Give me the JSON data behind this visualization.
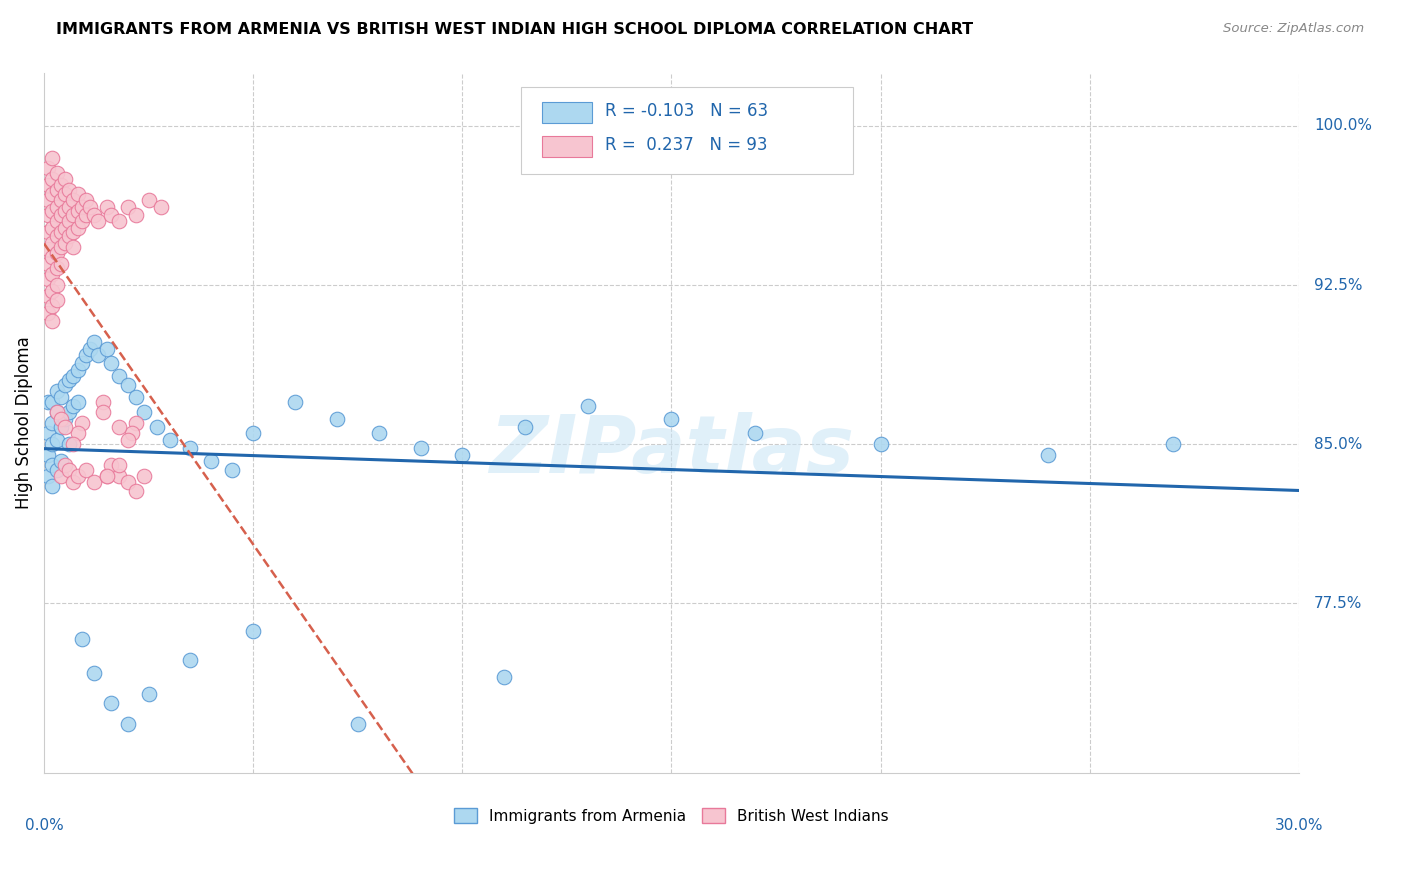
{
  "title": "IMMIGRANTS FROM ARMENIA VS BRITISH WEST INDIAN HIGH SCHOOL DIPLOMA CORRELATION CHART",
  "source": "Source: ZipAtlas.com",
  "ylabel": "High School Diploma",
  "xlim": [
    0.0,
    0.3
  ],
  "ylim": [
    0.695,
    1.025
  ],
  "armenia_color": "#add8f0",
  "armenia_edge_color": "#5b9bd5",
  "bwi_color": "#f7c5d0",
  "bwi_edge_color": "#e8799a",
  "armenia_line_color": "#2166ac",
  "bwi_line_color": "#d6604d",
  "legend_R_armenia": "-0.103",
  "legend_N_armenia": "63",
  "legend_R_bwi": "0.237",
  "legend_N_bwi": "93",
  "watermark": "ZIPatlas",
  "ytick_vals": [
    0.775,
    0.85,
    0.925,
    1.0
  ],
  "ytick_labels": [
    "77.5%",
    "85.0%",
    "92.5%",
    "100.0%"
  ],
  "armenia_x": [
    0.001,
    0.001,
    0.001,
    0.001,
    0.002,
    0.002,
    0.002,
    0.002,
    0.002,
    0.003,
    0.003,
    0.003,
    0.003,
    0.004,
    0.004,
    0.004,
    0.005,
    0.005,
    0.006,
    0.006,
    0.006,
    0.007,
    0.007,
    0.008,
    0.008,
    0.009,
    0.01,
    0.011,
    0.012,
    0.013,
    0.015,
    0.016,
    0.018,
    0.02,
    0.022,
    0.024,
    0.027,
    0.03,
    0.035,
    0.04,
    0.045,
    0.05,
    0.06,
    0.07,
    0.08,
    0.09,
    0.1,
    0.115,
    0.13,
    0.15,
    0.17,
    0.2,
    0.24,
    0.27,
    0.009,
    0.012,
    0.016,
    0.02,
    0.025,
    0.035,
    0.05,
    0.075,
    0.11
  ],
  "armenia_y": [
    0.87,
    0.855,
    0.845,
    0.835,
    0.87,
    0.86,
    0.85,
    0.84,
    0.83,
    0.875,
    0.865,
    0.852,
    0.838,
    0.872,
    0.858,
    0.842,
    0.878,
    0.862,
    0.88,
    0.865,
    0.85,
    0.882,
    0.868,
    0.885,
    0.87,
    0.888,
    0.892,
    0.895,
    0.898,
    0.892,
    0.895,
    0.888,
    0.882,
    0.878,
    0.872,
    0.865,
    0.858,
    0.852,
    0.848,
    0.842,
    0.838,
    0.855,
    0.87,
    0.862,
    0.855,
    0.848,
    0.845,
    0.858,
    0.868,
    0.862,
    0.855,
    0.85,
    0.845,
    0.85,
    0.758,
    0.742,
    0.728,
    0.718,
    0.732,
    0.748,
    0.762,
    0.718,
    0.74
  ],
  "bwi_x": [
    0.001,
    0.001,
    0.001,
    0.001,
    0.001,
    0.001,
    0.001,
    0.001,
    0.001,
    0.001,
    0.002,
    0.002,
    0.002,
    0.002,
    0.002,
    0.002,
    0.002,
    0.002,
    0.002,
    0.002,
    0.002,
    0.003,
    0.003,
    0.003,
    0.003,
    0.003,
    0.003,
    0.003,
    0.003,
    0.003,
    0.004,
    0.004,
    0.004,
    0.004,
    0.004,
    0.004,
    0.005,
    0.005,
    0.005,
    0.005,
    0.005,
    0.006,
    0.006,
    0.006,
    0.006,
    0.007,
    0.007,
    0.007,
    0.007,
    0.008,
    0.008,
    0.008,
    0.009,
    0.009,
    0.01,
    0.01,
    0.011,
    0.012,
    0.013,
    0.015,
    0.016,
    0.018,
    0.02,
    0.022,
    0.025,
    0.028,
    0.004,
    0.005,
    0.006,
    0.007,
    0.008,
    0.01,
    0.012,
    0.015,
    0.016,
    0.018,
    0.02,
    0.022,
    0.024,
    0.015,
    0.018,
    0.009,
    0.008,
    0.007,
    0.014,
    0.014,
    0.022,
    0.021,
    0.018,
    0.02,
    0.003,
    0.004,
    0.005
  ],
  "bwi_y": [
    0.98,
    0.972,
    0.965,
    0.958,
    0.95,
    0.942,
    0.935,
    0.928,
    0.92,
    0.912,
    0.985,
    0.975,
    0.968,
    0.96,
    0.952,
    0.945,
    0.938,
    0.93,
    0.922,
    0.915,
    0.908,
    0.978,
    0.97,
    0.962,
    0.955,
    0.948,
    0.94,
    0.933,
    0.925,
    0.918,
    0.972,
    0.965,
    0.958,
    0.95,
    0.943,
    0.935,
    0.975,
    0.968,
    0.96,
    0.952,
    0.945,
    0.97,
    0.962,
    0.955,
    0.948,
    0.965,
    0.958,
    0.95,
    0.943,
    0.968,
    0.96,
    0.952,
    0.962,
    0.955,
    0.965,
    0.958,
    0.962,
    0.958,
    0.955,
    0.962,
    0.958,
    0.955,
    0.962,
    0.958,
    0.965,
    0.962,
    0.835,
    0.84,
    0.838,
    0.832,
    0.835,
    0.838,
    0.832,
    0.835,
    0.84,
    0.835,
    0.832,
    0.828,
    0.835,
    0.835,
    0.84,
    0.86,
    0.855,
    0.85,
    0.87,
    0.865,
    0.86,
    0.855,
    0.858,
    0.852,
    0.865,
    0.862,
    0.858
  ]
}
